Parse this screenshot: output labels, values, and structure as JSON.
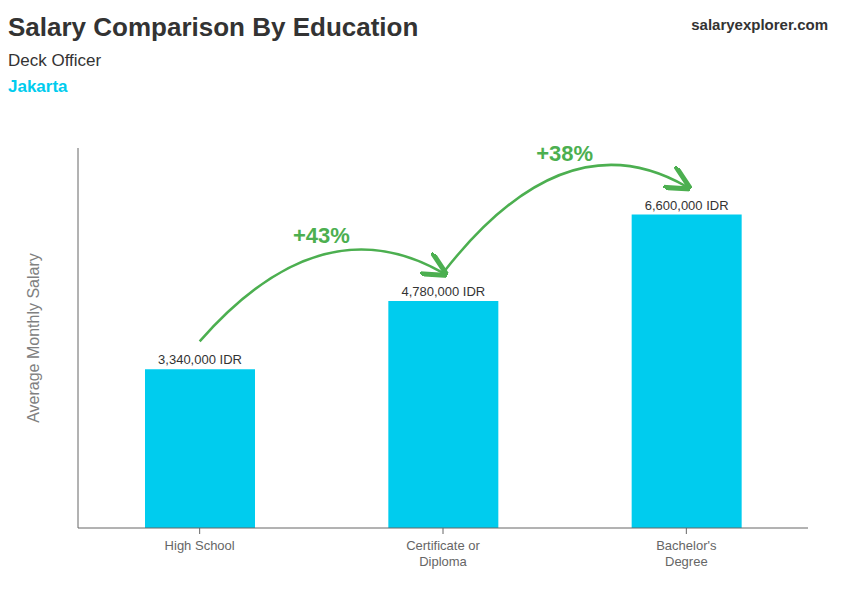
{
  "chart_data": {
    "type": "bar",
    "title": "Salary Comparison By Education",
    "subtitle": "Deck Officer",
    "caption": "Jakarta",
    "watermark": "salaryexplorer.com",
    "ylabel": "Average Monthly Salary",
    "categories": [
      "High School",
      "Certificate or\nDiploma",
      "Bachelor's\nDegree"
    ],
    "values": [
      3340000,
      4780000,
      6600000
    ],
    "value_labels": [
      "3,340,000 IDR",
      "4,780,000 IDR",
      "6,600,000 IDR"
    ],
    "annotations": [
      "+43%",
      "+38%"
    ],
    "color": "#00ccee",
    "ylim": [
      0,
      8000000
    ],
    "tick_labels": "x",
    "grid": false,
    "data_labels": true
  }
}
